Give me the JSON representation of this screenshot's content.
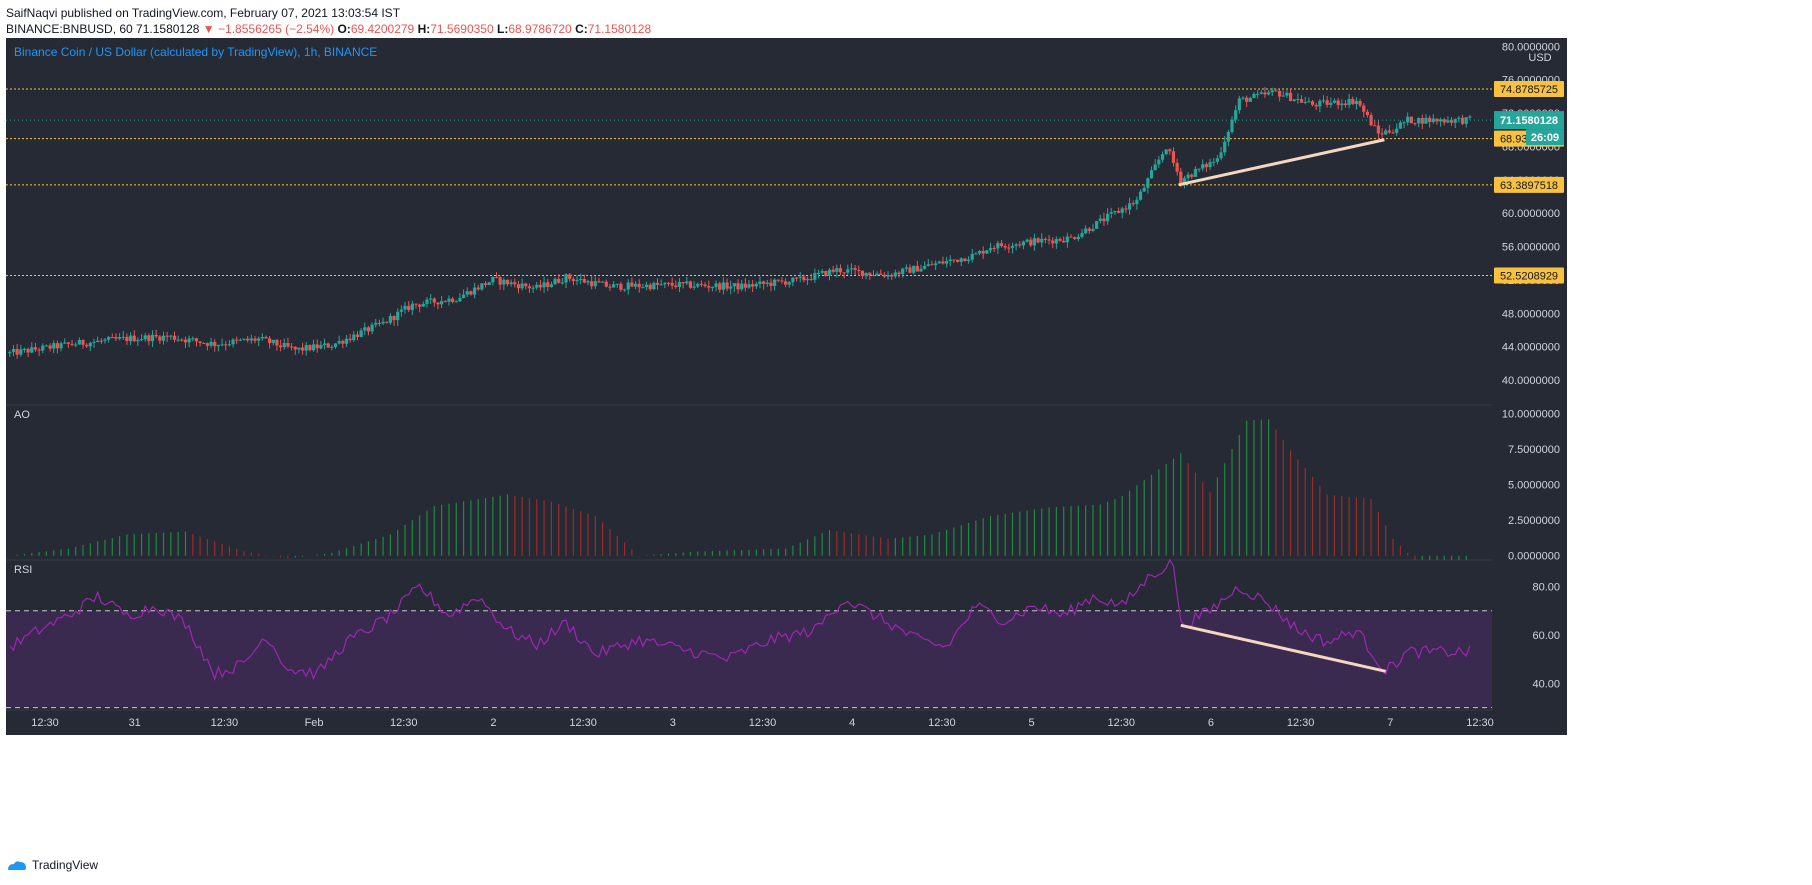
{
  "header": {
    "published": "SaifNaqvi published on TradingView.com, February 07, 2021 13:03:54 IST",
    "symbol": "BINANCE:BNBUSD, 60",
    "last": "71.1580128",
    "change": "−1.8556265 (−2.54%)",
    "o_label": "O:",
    "o": "69.4200279",
    "h_label": "H:",
    "h": "71.5690350",
    "l_label": "L:",
    "l": "68.9786720",
    "c_label": "C:",
    "c": "71.1580128"
  },
  "footer": {
    "brand": "TradingView"
  },
  "colors": {
    "background": "#262a35",
    "up": "#26a69a",
    "down": "#ef5350",
    "level": "#f8c240",
    "trend": "#f5d7c0",
    "rsi": "#9c27b0",
    "rsi_band": "#3a2a50",
    "axis_text": "#d1d4dc",
    "time_text": "#4ea1f3"
  },
  "chart_data": [
    {
      "type": "candlestick",
      "title": "Binance Coin / US Dollar (calculated by TradingView), 1h, BINANCE",
      "currency": "USD",
      "ylim": [
        37,
        81
      ],
      "y_ticks": [
        "40.0000000",
        "44.0000000",
        "48.0000000",
        "52.0000000",
        "56.0000000",
        "60.0000000",
        "64.0000000",
        "68.0000000",
        "72.0000000",
        "76.0000000",
        "80.0000000"
      ],
      "x_ticks": [
        "12:30",
        "31",
        "12:30",
        "Feb",
        "12:30",
        "2",
        "12:30",
        "3",
        "12:30",
        "4",
        "12:30",
        "5",
        "12:30",
        "6",
        "12:30",
        "7",
        "12:30"
      ],
      "levels": [
        {
          "value": 74.8785725,
          "label": "74.8785725"
        },
        {
          "value": 68.9330748,
          "label": "68.9330748"
        },
        {
          "value": 63.3897518,
          "label": "63.3897518"
        },
        {
          "value": 52.5208929,
          "label": "52.5208929"
        }
      ],
      "last_price": {
        "value": 71.1580128,
        "label": "71.1580128",
        "countdown": "26:09"
      },
      "trendline": {
        "from": {
          "bar": 0.7986,
          "value": 63.4
        },
        "to": {
          "bar": 0.9391,
          "value": 68.8
        }
      },
      "anchors": [
        [
          0,
          43.2
        ],
        [
          0.042,
          44.3
        ],
        [
          0.083,
          45.0
        ],
        [
          0.108,
          45.2
        ],
        [
          0.14,
          44.3
        ],
        [
          0.17,
          44.9
        ],
        [
          0.195,
          43.6
        ],
        [
          0.22,
          44.2
        ],
        [
          0.255,
          46.8
        ],
        [
          0.275,
          49.0
        ],
        [
          0.305,
          49.8
        ],
        [
          0.33,
          52.0
        ],
        [
          0.36,
          51.0
        ],
        [
          0.38,
          52.3
        ],
        [
          0.41,
          51.2
        ],
        [
          0.455,
          51.4
        ],
        [
          0.5,
          51.2
        ],
        [
          0.54,
          52.0
        ],
        [
          0.565,
          53.2
        ],
        [
          0.6,
          52.6
        ],
        [
          0.63,
          53.8
        ],
        [
          0.66,
          55.0
        ],
        [
          0.67,
          56.0
        ],
        [
          0.7,
          56.6
        ],
        [
          0.725,
          57.0
        ],
        [
          0.745,
          59.0
        ],
        [
          0.77,
          61.5
        ],
        [
          0.79,
          68.0
        ],
        [
          0.8,
          64.0
        ],
        [
          0.825,
          66.5
        ],
        [
          0.84,
          73.5
        ],
        [
          0.865,
          74.5
        ],
        [
          0.89,
          73.0
        ],
        [
          0.92,
          73.5
        ],
        [
          0.935,
          69.5
        ],
        [
          0.945,
          70.0
        ],
        [
          0.955,
          71.16
        ]
      ]
    },
    {
      "type": "bar",
      "title": "AO",
      "ylim": [
        -0.3,
        10.6
      ],
      "y_ticks": [
        "0.0000000",
        "2.5000000",
        "5.0000000",
        "7.5000000",
        "10.0000000"
      ],
      "anchors": [
        [
          0,
          0
        ],
        [
          0.04,
          0.5
        ],
        [
          0.08,
          1.5
        ],
        [
          0.12,
          1.7
        ],
        [
          0.16,
          0.3
        ],
        [
          0.19,
          -0.2
        ],
        [
          0.22,
          0.2
        ],
        [
          0.26,
          1.5
        ],
        [
          0.29,
          3.5
        ],
        [
          0.34,
          4.3
        ],
        [
          0.37,
          3.8
        ],
        [
          0.4,
          2.8
        ],
        [
          0.43,
          0
        ],
        [
          0.47,
          0.3
        ],
        [
          0.53,
          0.5
        ],
        [
          0.56,
          1.8
        ],
        [
          0.6,
          1.2
        ],
        [
          0.63,
          1.5
        ],
        [
          0.67,
          2.8
        ],
        [
          0.71,
          3.4
        ],
        [
          0.745,
          3.6
        ],
        [
          0.76,
          4.2
        ],
        [
          0.8,
          7.2
        ],
        [
          0.82,
          4.5
        ],
        [
          0.845,
          9.5
        ],
        [
          0.86,
          9.6
        ],
        [
          0.875,
          7.4
        ],
        [
          0.9,
          4.3
        ],
        [
          0.93,
          4.0
        ],
        [
          0.945,
          1.2
        ],
        [
          0.96,
          -0.3
        ]
      ]
    },
    {
      "type": "line",
      "title": "RSI",
      "ylim": [
        29,
        91
      ],
      "y_ticks": [
        "40.00",
        "60.00",
        "80.00"
      ],
      "bands": [
        30,
        70
      ],
      "trendline": {
        "from": {
          "bar": 0.8,
          "value": 64
        },
        "to": {
          "bar": 0.94,
          "value": 45
        }
      },
      "anchors": [
        [
          0,
          55
        ],
        [
          0.02,
          62
        ],
        [
          0.04,
          68
        ],
        [
          0.06,
          76
        ],
        [
          0.08,
          68
        ],
        [
          0.1,
          72
        ],
        [
          0.12,
          65
        ],
        [
          0.14,
          44
        ],
        [
          0.16,
          48
        ],
        [
          0.175,
          60
        ],
        [
          0.19,
          46
        ],
        [
          0.21,
          44
        ],
        [
          0.23,
          57
        ],
        [
          0.26,
          68
        ],
        [
          0.28,
          80
        ],
        [
          0.3,
          68
        ],
        [
          0.32,
          76
        ],
        [
          0.34,
          62
        ],
        [
          0.36,
          56
        ],
        [
          0.38,
          65
        ],
        [
          0.4,
          52
        ],
        [
          0.43,
          58
        ],
        [
          0.46,
          54
        ],
        [
          0.49,
          50
        ],
        [
          0.52,
          58
        ],
        [
          0.55,
          62
        ],
        [
          0.57,
          75
        ],
        [
          0.6,
          65
        ],
        [
          0.62,
          58
        ],
        [
          0.64,
          55
        ],
        [
          0.66,
          72
        ],
        [
          0.68,
          66
        ],
        [
          0.7,
          72
        ],
        [
          0.72,
          68
        ],
        [
          0.74,
          76
        ],
        [
          0.76,
          72
        ],
        [
          0.78,
          85
        ],
        [
          0.795,
          90
        ],
        [
          0.8,
          64
        ],
        [
          0.82,
          70
        ],
        [
          0.84,
          80
        ],
        [
          0.86,
          73
        ],
        [
          0.88,
          62
        ],
        [
          0.9,
          57
        ],
        [
          0.92,
          62
        ],
        [
          0.94,
          45
        ],
        [
          0.955,
          53
        ]
      ]
    }
  ]
}
